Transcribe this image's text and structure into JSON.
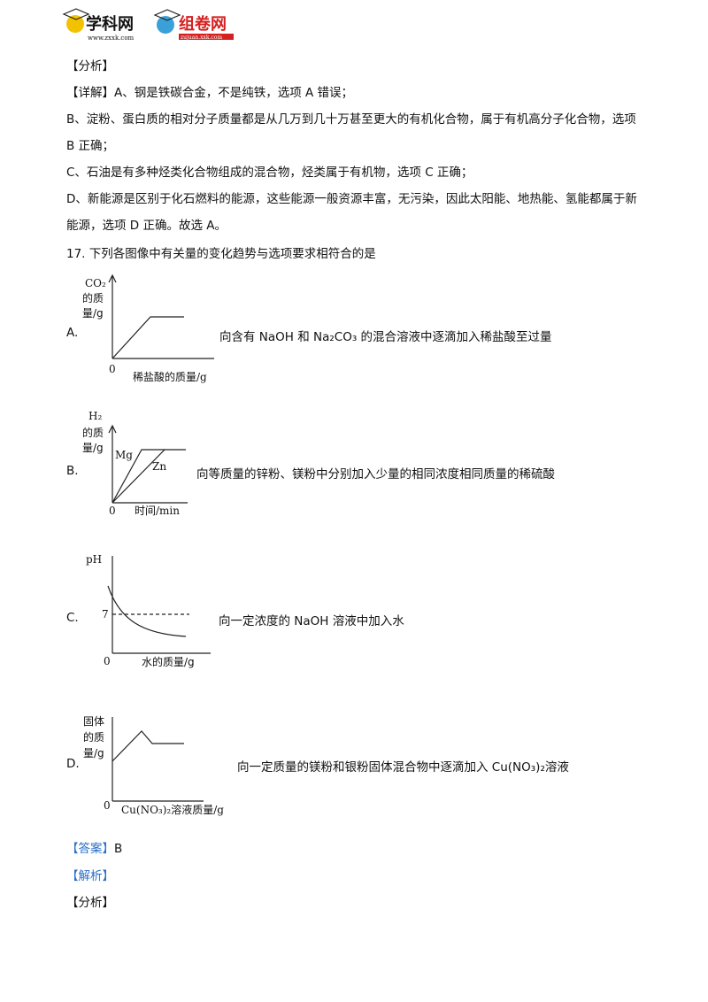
{
  "header": {
    "logo_left": "学科网",
    "logo_left_url": "www.zxxk.com",
    "logo_right": "组卷网",
    "logo_right_url": "zujuan.xxk.com"
  },
  "paragraphs": [
    "【分析】",
    "【详解】A、钢是铁碳合金，不是纯铁，选项 A 错误；",
    "B、淀粉、蛋白质的相对分子质量都是从几万到几十万甚至更大的有机化合物，属于有机高分子化合物，选项 B 正确；",
    "C、石油是有多种烃类化合物组成的混合物，烃类属于有机物，选项 C 正确；",
    "D、新能源是区别于化石燃料的能源，这些能源一般资源丰富，无污染，因此太阳能、地热能、氢能都属于新能源，选项 D 正确。故选 A。"
  ],
  "question": {
    "number": "17.",
    "stem": "下列各图像中有关量的变化趋势与选项要求相符合的是"
  },
  "options": [
    {
      "label": "A.",
      "description": "向含有 NaOH 和 Na₂CO₃ 的混合溶液中逐滴加入稀盐酸至过量",
      "graph": {
        "y_label": [
          "CO₂",
          "的质",
          "量/g"
        ],
        "origin": "0",
        "x_label": "稀盐酸的质量/g"
      }
    },
    {
      "label": "B.",
      "description": "向等质量的锌粉、镁粉中分别加入少量的相同浓度相同质量的稀硫酸",
      "graph": {
        "y_label": [
          "H₂",
          "的质",
          "量/g"
        ],
        "origin": "0",
        "x_label": "时间/min",
        "line_labels": [
          "Mg",
          "Zn"
        ]
      }
    },
    {
      "label": "C.",
      "description": "向一定浓度的 NaOH 溶液中加入水",
      "graph": {
        "y_label": [
          "pH"
        ],
        "origin": "0",
        "x_label": "水的质量/g",
        "reference": "7"
      }
    },
    {
      "label": "D.",
      "description": "向一定质量的镁粉和银粉固体混合物中逐滴加入 Cu(NO₃)₂溶液",
      "graph": {
        "y_label": [
          "固体",
          "的质",
          "量/g"
        ],
        "origin": "0",
        "x_label": "Cu(NO₃)₂溶液质量/g"
      }
    }
  ],
  "answer": {
    "tag": "【答案】",
    "value": "B"
  },
  "analysis_tag": "【解析】",
  "analysis_sub": "【分析】"
}
